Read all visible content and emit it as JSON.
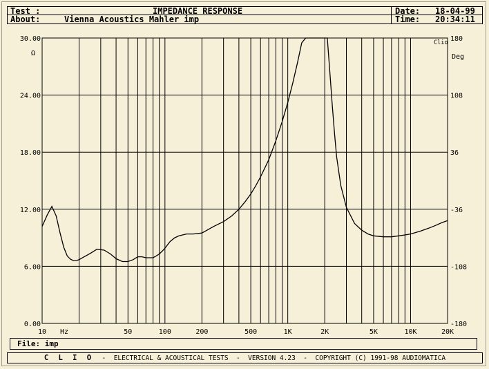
{
  "header": {
    "test_label": "Test :",
    "test_value": "IMPEDANCE RESPONSE",
    "about_label": "About:",
    "about_value": "Vienna Acoustics Mahler imp",
    "date_label": "Date:",
    "date_value": "18-04-99",
    "time_label": "Time:",
    "time_value": "20:34:11"
  },
  "file": {
    "label": "File:",
    "value": "imp"
  },
  "footer": {
    "brand": "C L I O",
    "text": "-  ELECTRICAL & ACOUSTICAL TESTS  -  VERSION 4.23  -  COPYRIGHT (C) 1991-98 AUDIOMATICA"
  },
  "colors": {
    "background": "#f6f0d8",
    "grid": "#000000",
    "trace": "#000000"
  },
  "chart_data": {
    "type": "line",
    "title": "IMPEDANCE RESPONSE",
    "xscale": "log",
    "xlim": [
      10,
      20000
    ],
    "ylim": [
      0,
      30
    ],
    "y2lim": [
      -180,
      180
    ],
    "left_unit": "Ω",
    "right_unit": "Deg",
    "corner_label": "Clio",
    "x_unit_label": "Hz",
    "x_ticks": [
      {
        "value": 10,
        "label": "10"
      },
      {
        "value": 50,
        "label": "50"
      },
      {
        "value": 100,
        "label": "100"
      },
      {
        "value": 200,
        "label": "200"
      },
      {
        "value": 500,
        "label": "500"
      },
      {
        "value": 1000,
        "label": "1K"
      },
      {
        "value": 2000,
        "label": "2K"
      },
      {
        "value": 5000,
        "label": "5K"
      },
      {
        "value": 10000,
        "label": "10K"
      },
      {
        "value": 20000,
        "label": "20K"
      }
    ],
    "x_grid": [
      10,
      20,
      30,
      40,
      50,
      60,
      70,
      80,
      90,
      100,
      200,
      300,
      400,
      500,
      600,
      700,
      800,
      900,
      1000,
      2000,
      3000,
      4000,
      5000,
      6000,
      7000,
      8000,
      9000,
      10000,
      20000
    ],
    "y_ticks": [
      {
        "value": 0,
        "label": "0.00"
      },
      {
        "value": 6,
        "label": "6.00"
      },
      {
        "value": 12,
        "label": "12.00"
      },
      {
        "value": 18,
        "label": "18.00"
      },
      {
        "value": 24,
        "label": "24.00"
      },
      {
        "value": 30,
        "label": "30.00"
      }
    ],
    "y2_ticks": [
      {
        "value": -180,
        "label": "-180"
      },
      {
        "value": -108,
        "label": "-108"
      },
      {
        "value": -36,
        "label": "-36"
      },
      {
        "value": 36,
        "label": "36"
      },
      {
        "value": 108,
        "label": "108"
      },
      {
        "value": 180,
        "label": "180"
      }
    ],
    "grid": true,
    "series": [
      {
        "x": [
          10,
          11,
          12,
          13,
          14,
          15,
          16,
          17,
          18,
          19,
          20,
          22,
          25,
          28,
          32,
          36,
          40,
          45,
          50,
          55,
          60,
          65,
          70,
          75,
          80,
          85,
          90,
          95,
          100,
          110,
          120,
          130,
          150,
          170,
          200,
          250,
          300,
          350,
          400,
          450,
          500,
          550,
          600,
          700,
          800,
          900,
          1000,
          1100,
          1200,
          1300,
          1400,
          1500,
          2000,
          2100,
          2200,
          2300,
          2400,
          2500,
          2700,
          3000,
          3500,
          4000,
          4500,
          5000,
          6000,
          7000,
          8000,
          9000,
          10000,
          12000,
          14000,
          16000,
          18000,
          20000
        ],
        "y": [
          10.2,
          11.4,
          12.3,
          11.3,
          9.5,
          8.0,
          7.1,
          6.75,
          6.6,
          6.6,
          6.7,
          7.0,
          7.4,
          7.8,
          7.7,
          7.3,
          6.8,
          6.5,
          6.5,
          6.7,
          7.0,
          7.0,
          6.9,
          6.9,
          6.9,
          7.1,
          7.3,
          7.6,
          7.9,
          8.6,
          9.0,
          9.2,
          9.4,
          9.4,
          9.5,
          10.2,
          10.7,
          11.3,
          12.0,
          12.8,
          13.6,
          14.5,
          15.4,
          17.2,
          19.2,
          21.2,
          23.2,
          25.3,
          27.4,
          29.5,
          31.5,
          33.0,
          33.0,
          30.0,
          26.5,
          23.0,
          20.0,
          17.5,
          14.5,
          12.2,
          10.5,
          9.8,
          9.4,
          9.2,
          9.1,
          9.1,
          9.2,
          9.3,
          9.4,
          9.7,
          10.0,
          10.3,
          10.6,
          10.8
        ]
      }
    ]
  }
}
